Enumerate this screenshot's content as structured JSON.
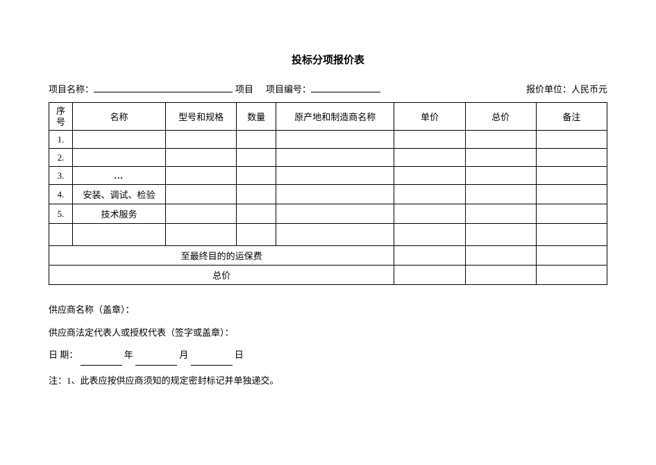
{
  "title": "投标分项报价表",
  "header": {
    "project_name_label": "项目名称：",
    "project_name_value": "",
    "project_suffix": "项目",
    "project_number_label": "项目编号：",
    "project_number_value": "",
    "quote_unit_label": "报价单位：人民币元"
  },
  "columns": {
    "seq": "序号",
    "name": "名称",
    "spec": "型号和规格",
    "qty": "数量",
    "origin": "原产地和制造商名称",
    "unit_price": "单价",
    "total_price": "总价",
    "note": "备注"
  },
  "rows": [
    {
      "seq": "1.",
      "name": "",
      "spec": "",
      "qty": "",
      "origin": "",
      "unit": "",
      "total": "",
      "note": ""
    },
    {
      "seq": "2.",
      "name": "",
      "spec": "",
      "qty": "",
      "origin": "",
      "unit": "",
      "total": "",
      "note": ""
    },
    {
      "seq": "3.",
      "name": "…",
      "spec": "",
      "qty": "",
      "origin": "",
      "unit": "",
      "total": "",
      "note": ""
    },
    {
      "seq": "4.",
      "name": "安装、调试、检验",
      "spec": "",
      "qty": "",
      "origin": "",
      "unit": "",
      "total": "",
      "note": ""
    },
    {
      "seq": "5.",
      "name": "技术服务",
      "spec": "",
      "qty": "",
      "origin": "",
      "unit": "",
      "total": "",
      "note": ""
    }
  ],
  "summary": {
    "shipping_label": "至最终目的的运保费",
    "total_label": "总价"
  },
  "footer": {
    "supplier_name": "供应商名称（盖章）：",
    "legal_rep": "供应商法定代表人或授权代表（签字或盖章）：",
    "date_label": "日    期：",
    "year": "年",
    "month": "月",
    "day": "日",
    "note": "注：1、此表应按供应商须知的规定密封标记并单独递交。"
  },
  "style": {
    "page_bg": "#ffffff",
    "text_color": "#000000",
    "border_color": "#000000",
    "title_fontsize": 15,
    "body_fontsize": 13,
    "font_family": "SimSun"
  }
}
